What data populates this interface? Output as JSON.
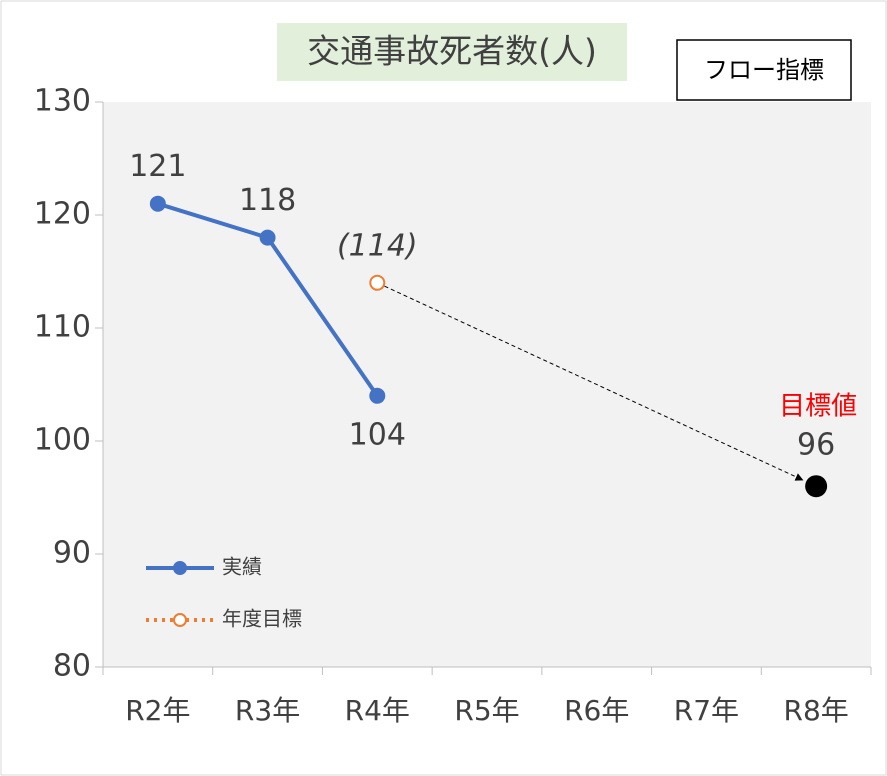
{
  "chart_data": {
    "type": "line",
    "title": "交通事故死者数(人)",
    "annotation": "フロー指標",
    "categories": [
      "R2年",
      "R3年",
      "R4年",
      "R5年",
      "R6年",
      "R7年",
      "R8年"
    ],
    "series": [
      {
        "name": "実績",
        "color": "#4472c4",
        "values": [
          121,
          118,
          104,
          null,
          null,
          null,
          null
        ]
      },
      {
        "name": "年度目標",
        "color": "#ed7d31",
        "values": [
          null,
          null,
          114,
          null,
          null,
          null,
          null
        ],
        "value_labels": [
          null,
          null,
          "(114)",
          null,
          null,
          null,
          null
        ]
      }
    ],
    "target": {
      "name": "目標値",
      "color": "#000000",
      "label_color": "#ff0000",
      "values": [
        null,
        null,
        null,
        null,
        null,
        null,
        96
      ]
    },
    "ylim": [
      80,
      130
    ],
    "yticks": [
      80,
      90,
      100,
      110,
      120,
      130
    ],
    "grid": false
  }
}
